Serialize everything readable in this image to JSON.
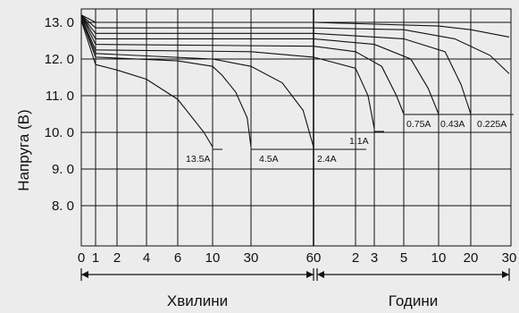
{
  "chart_data": {
    "type": "line",
    "ylabel": "Напруга (В)",
    "ylim": [
      7.0,
      13.5
    ],
    "y_ticks": [
      "13. 0",
      "12. 0",
      "11. 0",
      "10. 0",
      "9. 0",
      "8. 0"
    ],
    "x_ticks": [
      "0",
      "1",
      "2",
      "4",
      "6",
      "10",
      "30",
      "60",
      "2",
      "3",
      "5",
      "10",
      "20",
      "30"
    ],
    "x_segments": [
      {
        "label": "Хвилини",
        "from": 0,
        "to": 60,
        "unit": "min"
      },
      {
        "label": "Години",
        "from": 1,
        "to": 30,
        "unit": "h"
      }
    ],
    "series": [
      {
        "name": "13.5A",
        "points": [
          [
            0,
            13.05
          ],
          [
            1,
            11.85
          ],
          [
            2,
            11.7
          ],
          [
            4,
            11.45
          ],
          [
            6,
            10.9
          ],
          [
            9,
            10.0
          ],
          [
            10,
            9.6
          ]
        ]
      },
      {
        "name": "4.5A",
        "points": [
          [
            0,
            13.1
          ],
          [
            1,
            12.05
          ],
          [
            6,
            11.95
          ],
          [
            10,
            11.8
          ],
          [
            15,
            11.55
          ],
          [
            22,
            11.1
          ],
          [
            28,
            10.4
          ],
          [
            30,
            9.6
          ]
        ]
      },
      {
        "name": "2.4A",
        "points": [
          [
            0,
            13.1
          ],
          [
            1,
            12.15
          ],
          [
            10,
            12.0
          ],
          [
            30,
            11.8
          ],
          [
            45,
            11.35
          ],
          [
            55,
            10.6
          ],
          [
            60,
            9.6
          ]
        ]
      },
      {
        "name": "1.1A",
        "points": [
          [
            0,
            13.15
          ],
          [
            1,
            12.25
          ],
          [
            30,
            12.2
          ],
          [
            60,
            12.05
          ],
          [
            120,
            11.75
          ],
          [
            160,
            11.0
          ],
          [
            180,
            10.1
          ]
        ]
      },
      {
        "name": "0.75A",
        "points": [
          [
            0,
            13.2
          ],
          [
            1,
            12.4
          ],
          [
            60,
            12.35
          ],
          [
            120,
            12.2
          ],
          [
            210,
            11.8
          ],
          [
            270,
            11.0
          ],
          [
            300,
            10.5
          ]
        ]
      },
      {
        "name": "0.43A",
        "points": [
          [
            0,
            13.2
          ],
          [
            1,
            12.55
          ],
          [
            60,
            12.55
          ],
          [
            180,
            12.4
          ],
          [
            360,
            12.0
          ],
          [
            510,
            11.2
          ],
          [
            600,
            10.5
          ]
        ]
      },
      {
        "name": "0.225A",
        "points": [
          [
            0,
            13.2
          ],
          [
            1,
            12.7
          ],
          [
            60,
            12.7
          ],
          [
            300,
            12.55
          ],
          [
            720,
            12.2
          ],
          [
            1020,
            11.3
          ],
          [
            1200,
            10.5
          ]
        ]
      },
      {
        "name": "",
        "points": [
          [
            0,
            13.2
          ],
          [
            1,
            12.85
          ],
          [
            60,
            12.85
          ],
          [
            300,
            12.8
          ],
          [
            900,
            12.55
          ],
          [
            1500,
            12.1
          ],
          [
            1800,
            11.6
          ]
        ]
      },
      {
        "name": "",
        "points": [
          [
            0,
            13.2
          ],
          [
            1,
            13.0
          ],
          [
            60,
            13.0
          ],
          [
            600,
            12.9
          ],
          [
            1200,
            12.8
          ],
          [
            1800,
            12.6
          ]
        ]
      }
    ]
  }
}
